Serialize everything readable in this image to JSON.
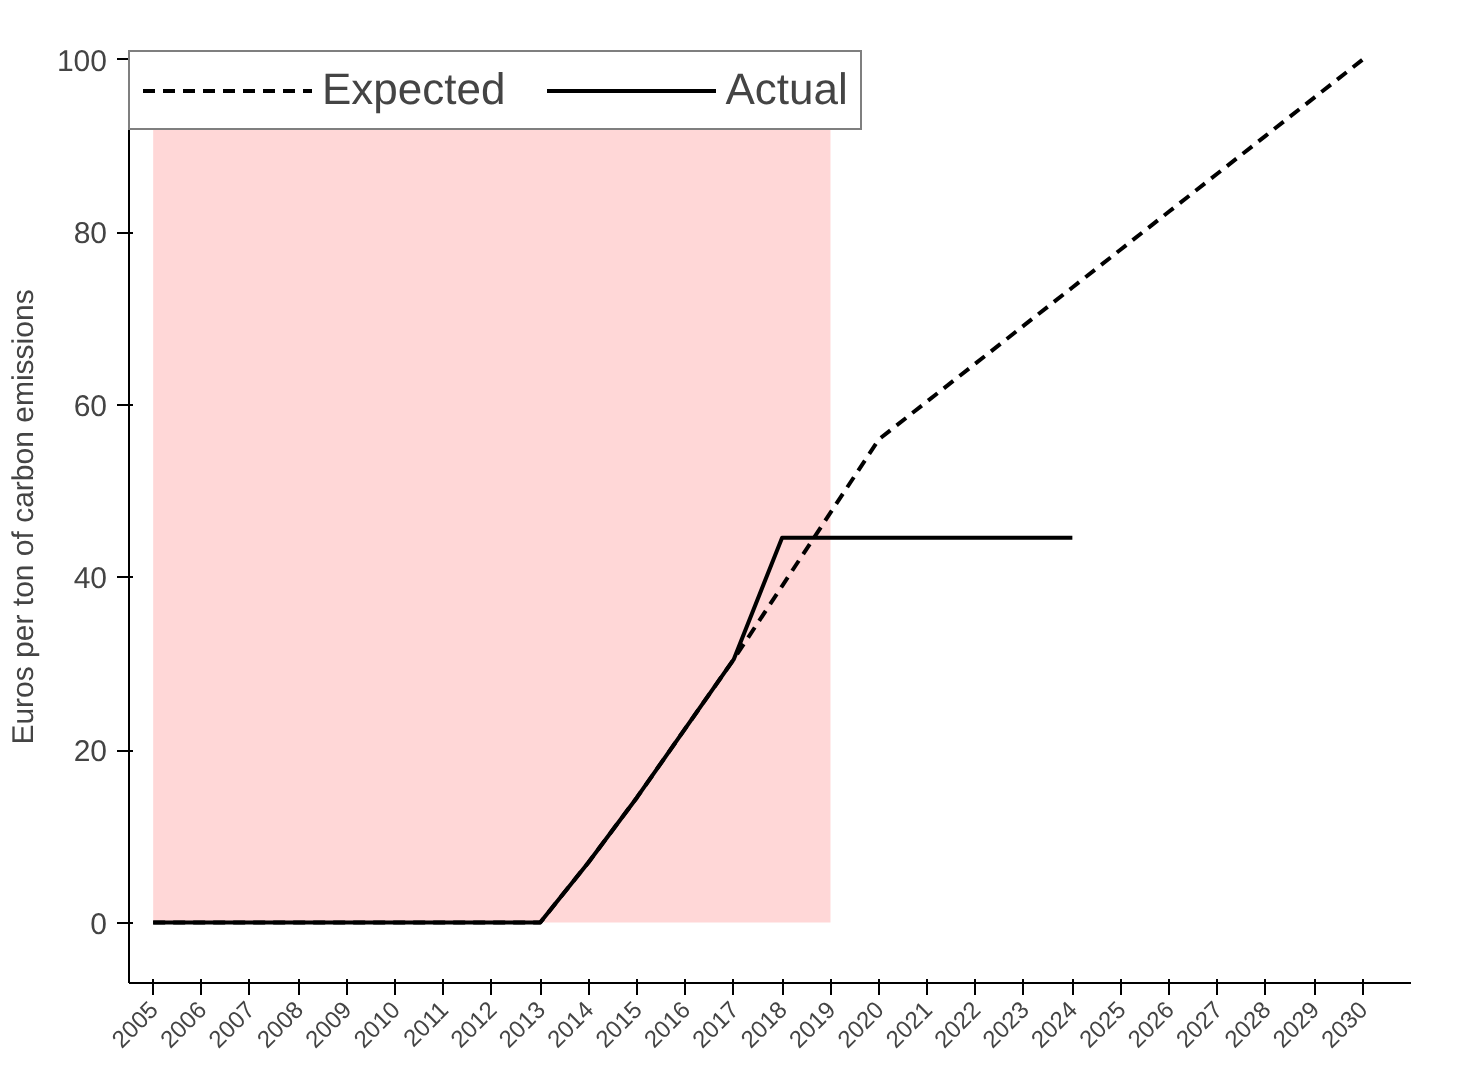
{
  "chart_data": {
    "type": "line",
    "ylabel": "Euros per ton of carbon emissions",
    "x": [
      2005,
      2006,
      2007,
      2008,
      2009,
      2010,
      2011,
      2012,
      2013,
      2014,
      2015,
      2016,
      2017,
      2018,
      2019,
      2020,
      2021,
      2022,
      2023,
      2024,
      2025,
      2026,
      2027,
      2028,
      2029,
      2030
    ],
    "series": [
      {
        "name": "Expected",
        "color": "#000000",
        "line_style": "dashed",
        "values": [
          0,
          0,
          0,
          0,
          0,
          0,
          0,
          0,
          0,
          7,
          14.5,
          22.5,
          30.5,
          39,
          47.5,
          56,
          60.4,
          64.8,
          69.2,
          73.6,
          78,
          82.4,
          86.8,
          91.2,
          95.6,
          100
        ]
      },
      {
        "name": "Actual",
        "color": "#000000",
        "line_style": "solid",
        "values": [
          0,
          0,
          0,
          0,
          0,
          0,
          0,
          0,
          0,
          7,
          14.5,
          22.5,
          30.5,
          44.6,
          44.6,
          44.6,
          44.6,
          44.6,
          44.6,
          44.6,
          null,
          null,
          null,
          null,
          null,
          null
        ]
      }
    ],
    "bands": [
      {
        "axis": "x",
        "from": 2005,
        "to": 2019,
        "color": "#ffd7d7"
      }
    ],
    "xlim": [
      2004.5,
      2031
    ],
    "ylim": [
      -7,
      101
    ],
    "xticks": [
      2005,
      2006,
      2007,
      2008,
      2009,
      2010,
      2011,
      2012,
      2013,
      2014,
      2015,
      2016,
      2017,
      2018,
      2019,
      2020,
      2021,
      2022,
      2023,
      2024,
      2025,
      2026,
      2027,
      2028,
      2029,
      2030
    ],
    "yticks": [
      0,
      20,
      40,
      60,
      80,
      100
    ],
    "grid": false,
    "legend": "top left",
    "marker": "none"
  }
}
